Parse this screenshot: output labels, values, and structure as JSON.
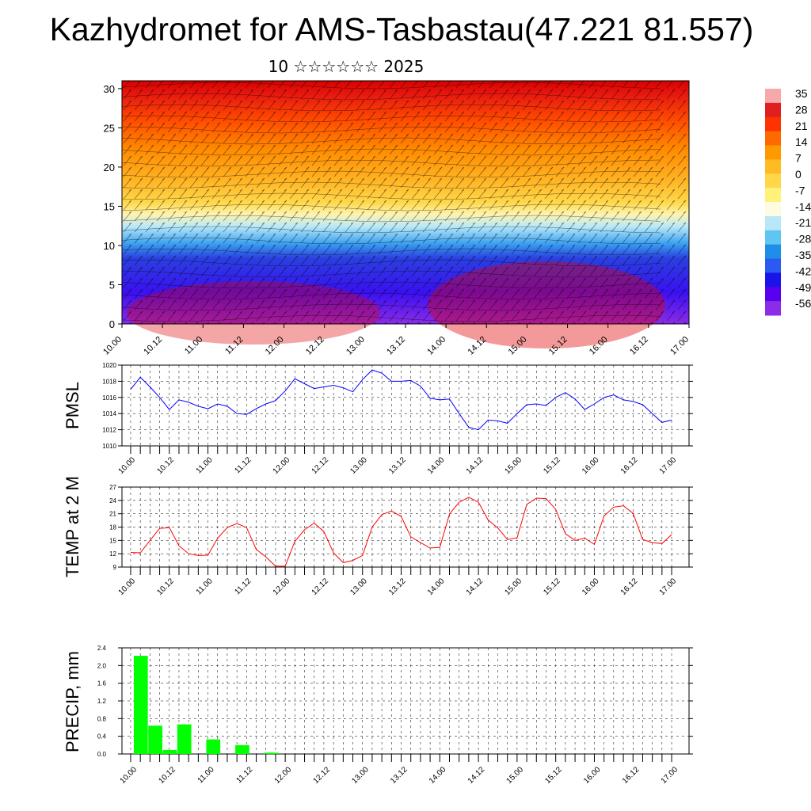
{
  "title": "Kazhydromet for AMS-Tasbastau(47.221 81.557)",
  "subtitle": "10 ☆☆☆☆☆☆ 2025",
  "time_labels": [
    "10.00",
    "10.12",
    "11.00",
    "11.12",
    "12.00",
    "12.12",
    "13.00",
    "13.12",
    "14.00",
    "14.12",
    "15.00",
    "15.12",
    "16.00",
    "16.12",
    "17.00"
  ],
  "colors": {
    "pmsl_line": "#0000ff",
    "temp_line": "#ff0000",
    "precip_bar": "#00ff00",
    "colorbar": [
      "#f7a8a8",
      "#e02020",
      "#ff3300",
      "#ff6a00",
      "#ff9900",
      "#ffbb22",
      "#ffd84a",
      "#fff27a",
      "#fffbe0",
      "#b8e8f8",
      "#5fc6f2",
      "#1f8ee8",
      "#2b5af0",
      "#1a14e8",
      "#5a00f0",
      "#8a2ce8"
    ]
  },
  "chart_data": [
    {
      "type": "heatmap",
      "description_key": "wind-temperature cross section",
      "ylim": [
        0,
        31
      ],
      "yticks": [
        0,
        5,
        10,
        15,
        20,
        25,
        30
      ],
      "x_labels": [
        "10.00",
        "10.12",
        "11.00",
        "11.12",
        "12.00",
        "12.12",
        "13.00",
        "13.12",
        "14.00",
        "14.12",
        "15.00",
        "15.12",
        "16.00",
        "16.12",
        "17.00"
      ],
      "colorbar_labels": [
        "35",
        "28",
        "21",
        "14",
        "7",
        "0",
        "-7",
        "-14",
        "-21",
        "-28",
        "-35",
        "-42",
        "-49",
        "-56"
      ],
      "colorbar_range": [
        -56,
        35
      ]
    },
    {
      "type": "line",
      "ylabel": "PMSL",
      "ylim": [
        1010,
        1020
      ],
      "yticks": [
        "1010",
        "1012",
        "1014",
        "1016",
        "1018",
        "1020"
      ],
      "x_labels": [
        "10.00",
        "10.12",
        "11.00",
        "11.12",
        "12.00",
        "12.12",
        "13.00",
        "13.12",
        "14.00",
        "14.12",
        "15.00",
        "15.12",
        "16.00",
        "16.12",
        "17.00"
      ],
      "series": [
        {
          "values": [
            1017.0,
            1018.5,
            1017.3,
            1016.0,
            1014.5,
            1015.7,
            1015.4,
            1014.9,
            1014.6,
            1015.2,
            1014.9,
            1014.0,
            1013.9,
            1014.6,
            1015.2,
            1015.6,
            1016.8,
            1018.3,
            1017.7,
            1017.1,
            1017.3,
            1017.5,
            1017.2,
            1016.7,
            1018.2,
            1019.4,
            1019.0,
            1018.0,
            1018.0,
            1018.1,
            1017.4,
            1015.9,
            1015.7,
            1015.8,
            1014.0,
            1012.3,
            1012.0,
            1013.2,
            1013.1,
            1012.8,
            1014.0,
            1015.1,
            1015.2,
            1015.0,
            1016.0,
            1016.6,
            1015.8,
            1014.5,
            1015.2,
            1016.0,
            1016.3,
            1015.7,
            1015.5,
            1015.1,
            1014.0,
            1012.9,
            1013.2
          ]
        }
      ]
    },
    {
      "type": "line",
      "ylabel": "TEMP at 2 M",
      "ylim": [
        9,
        27
      ],
      "yticks": [
        "9",
        "12",
        "15",
        "18",
        "21",
        "24",
        "27"
      ],
      "x_labels": [
        "10.00",
        "10.12",
        "11.00",
        "11.12",
        "12.00",
        "12.12",
        "13.00",
        "13.12",
        "14.00",
        "14.12",
        "15.00",
        "15.12",
        "16.00",
        "16.12",
        "17.00"
      ],
      "series": [
        {
          "values": [
            12.3,
            12.2,
            15.0,
            17.7,
            17.9,
            13.8,
            12.0,
            11.6,
            11.7,
            15.5,
            17.9,
            18.8,
            17.9,
            13.0,
            11.3,
            9.2,
            9.2,
            14.8,
            17.4,
            18.9,
            17.0,
            12.2,
            10.0,
            10.5,
            11.6,
            18.0,
            20.8,
            21.6,
            20.4,
            15.8,
            14.5,
            13.3,
            13.4,
            20.9,
            23.6,
            24.7,
            23.6,
            19.6,
            17.8,
            15.2,
            15.6,
            23.1,
            24.5,
            24.4,
            22.0,
            16.5,
            15.0,
            15.5,
            14.1,
            20.5,
            22.5,
            22.8,
            21.1,
            15.2,
            14.5,
            14.3,
            16.3
          ]
        }
      ]
    },
    {
      "type": "bar",
      "ylabel": "PRECIP, mm",
      "ylim": [
        0,
        2.4
      ],
      "yticks": [
        "0.0",
        "0.4",
        "0.8",
        "1.2",
        "1.6",
        "2.0",
        "2.4"
      ],
      "x_labels": [
        "10.00",
        "10.12",
        "11.00",
        "11.12",
        "12.00",
        "12.12",
        "13.00",
        "13.12",
        "14.00",
        "14.12",
        "15.00",
        "15.12",
        "16.00",
        "16.12",
        "17.00"
      ],
      "values": [
        2.22,
        0.64,
        0.09,
        0.67,
        0.0,
        0.33,
        0.0,
        0.2,
        0.0,
        0.03,
        0,
        0,
        0,
        0,
        0,
        0,
        0,
        0,
        0,
        0,
        0,
        0,
        0,
        0,
        0,
        0,
        0,
        0,
        0,
        0,
        0,
        0,
        0,
        0,
        0,
        0,
        0,
        0,
        0,
        0,
        0,
        0,
        0,
        0,
        0,
        0,
        0,
        0,
        0,
        0,
        0,
        0,
        0,
        0,
        0,
        0,
        0
      ]
    }
  ]
}
